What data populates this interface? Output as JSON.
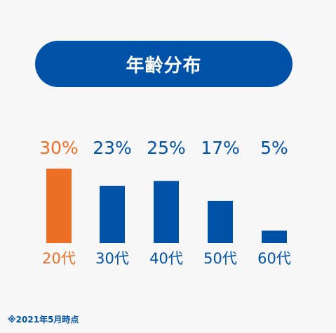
{
  "title": "年齢分布",
  "note": "※2021年5月時点",
  "colors": {
    "primary": "#0051a8",
    "accent": "#ee7027",
    "background": "#f7f7f7",
    "pill_text": "#ffffff"
  },
  "chart_data": {
    "type": "bar",
    "title": "年齢分布",
    "xlabel": "",
    "ylabel": "",
    "ylim": [
      0,
      30
    ],
    "grid": false,
    "categories": [
      "20代",
      "30代",
      "40代",
      "50代",
      "60代"
    ],
    "values": [
      30,
      23,
      25,
      17,
      5
    ],
    "value_labels": [
      "30%",
      "23%",
      "25%",
      "17%",
      "5%"
    ],
    "highlight_index": 0,
    "unit": "%"
  }
}
